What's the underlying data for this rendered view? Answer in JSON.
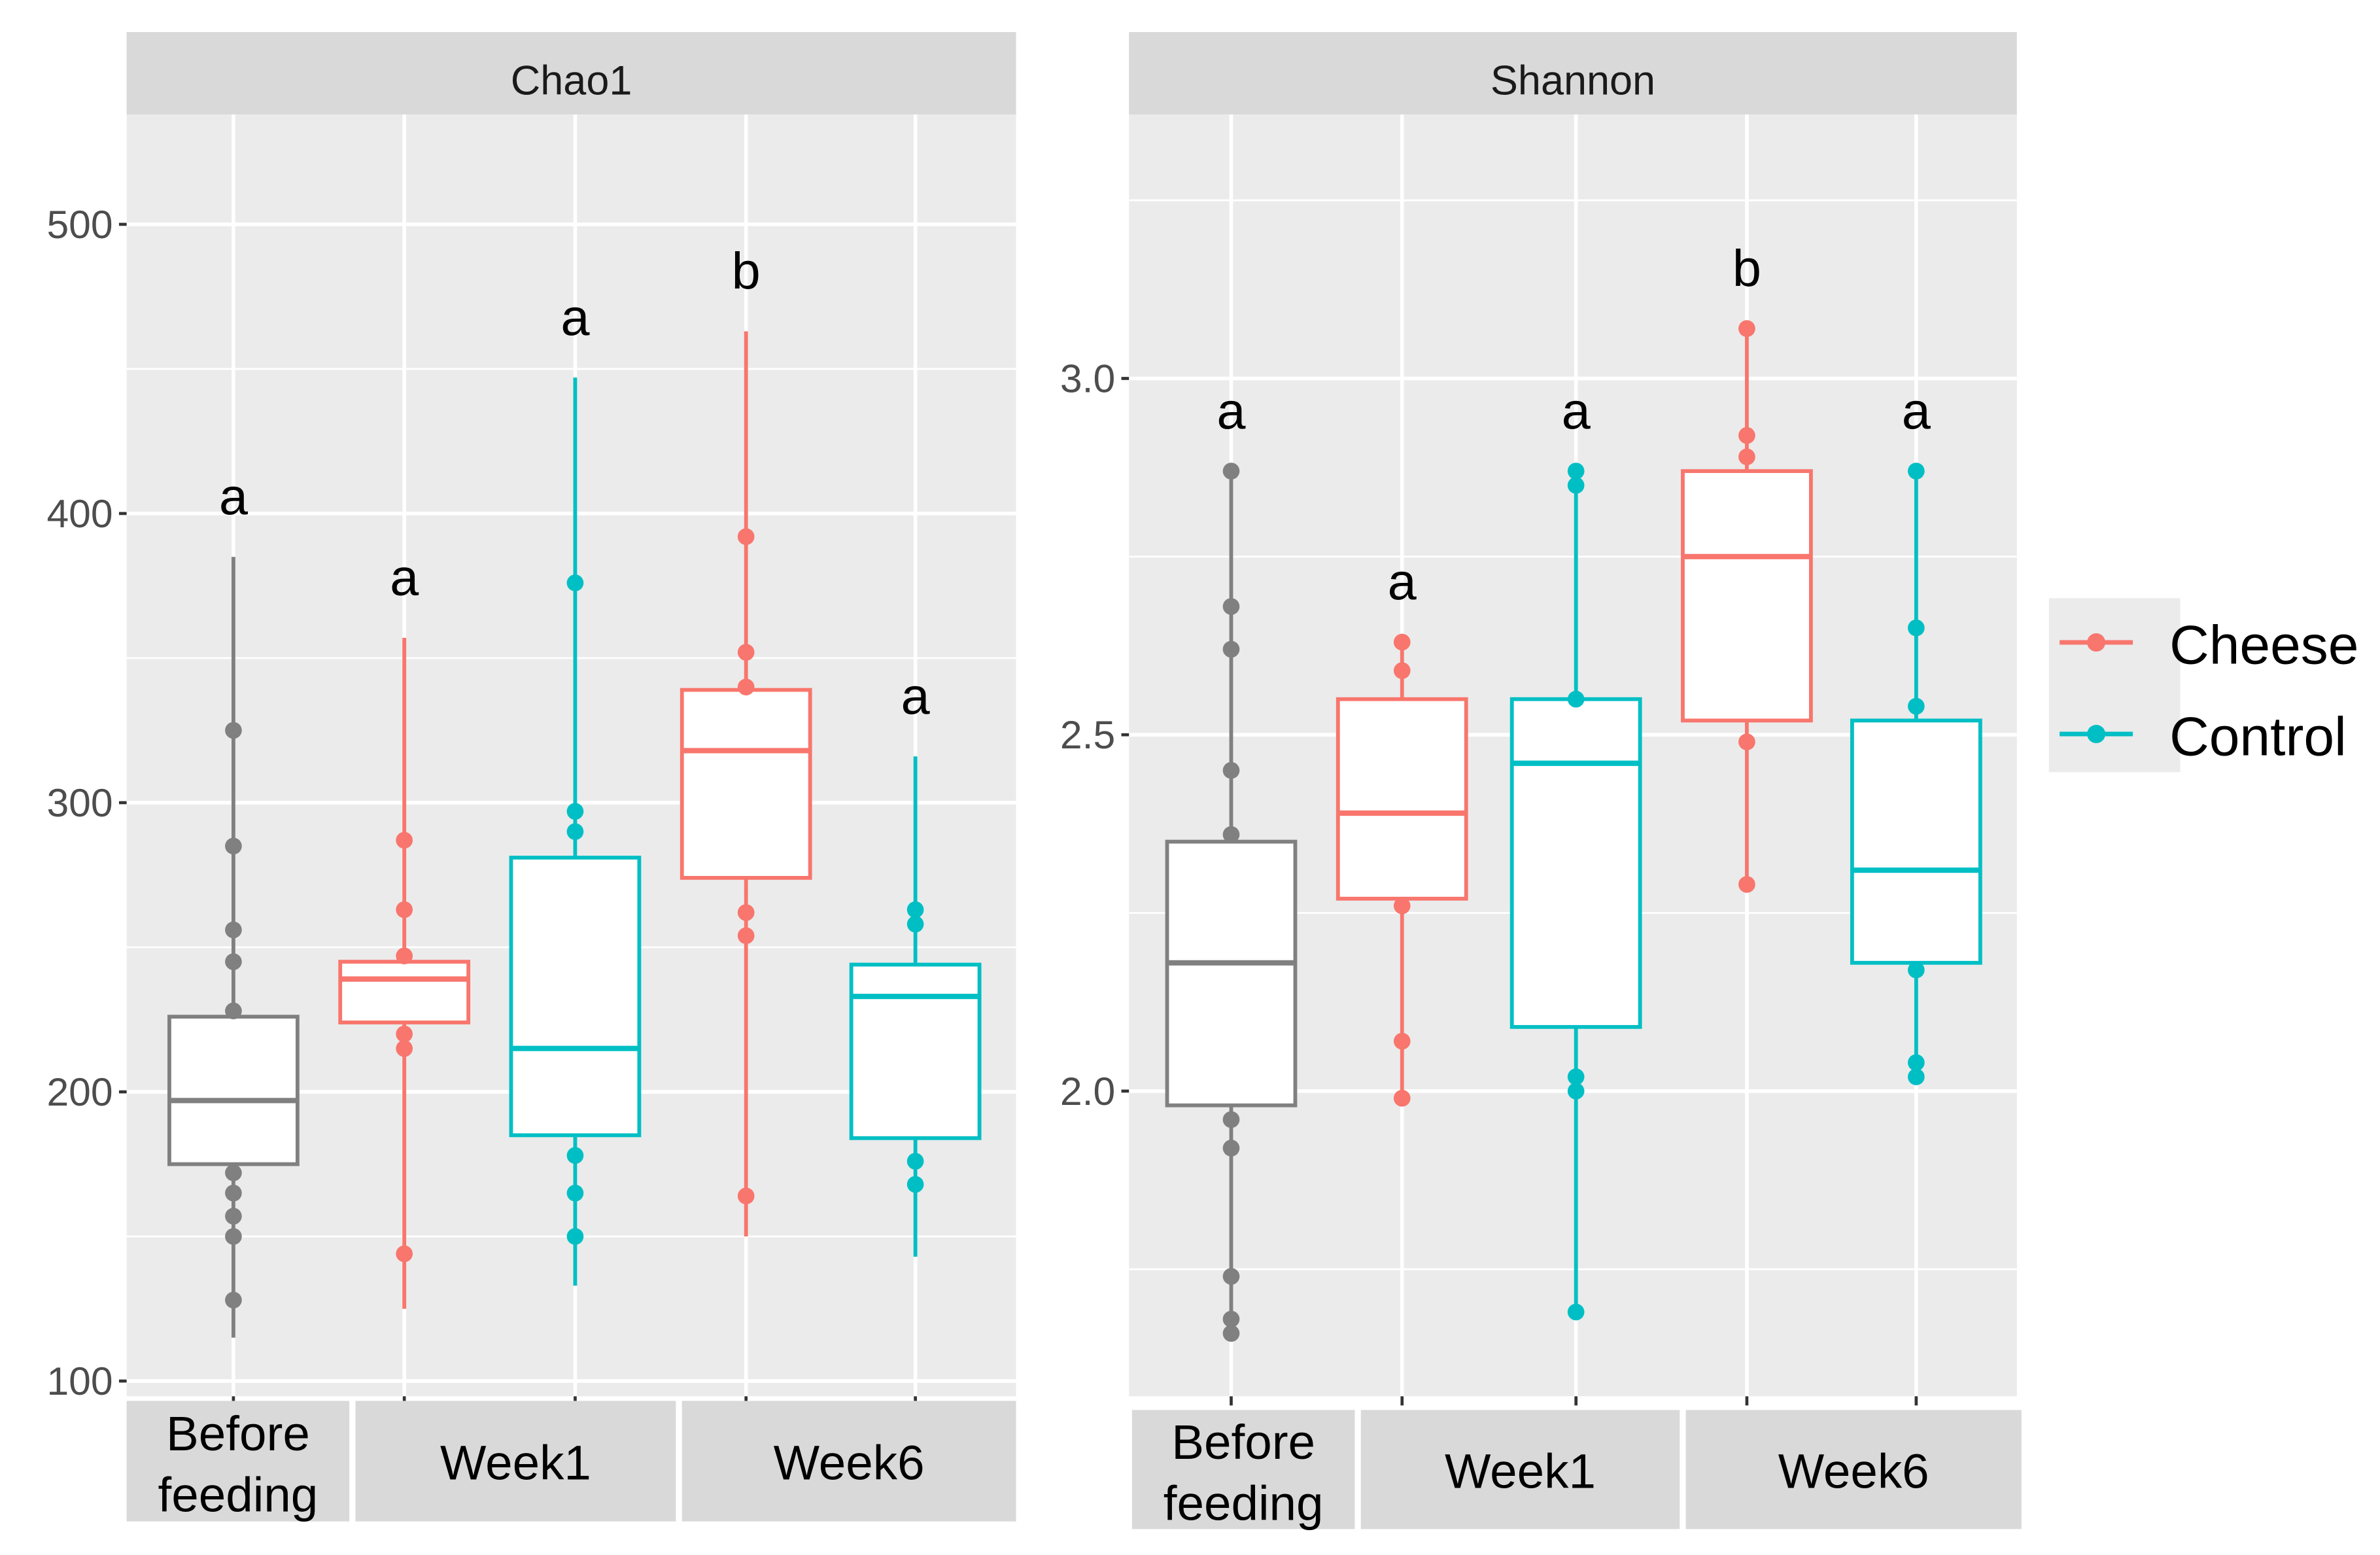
{
  "chart_data": [
    {
      "type": "box",
      "title": "Chao1",
      "ylim": [
        95,
        540
      ],
      "yticks": [
        100,
        200,
        300,
        400,
        500
      ],
      "groups": [
        "Before feeding",
        "Week1",
        "Week6"
      ],
      "boxes": [
        {
          "group": "Before feeding",
          "series": "Before",
          "color": "#808080",
          "min": 115,
          "q1": 175,
          "median": 197,
          "q3": 226,
          "max": 385,
          "points": [
            128,
            150,
            157,
            165,
            172,
            228,
            245,
            256,
            285,
            325
          ],
          "label": "a"
        },
        {
          "group": "Week1",
          "series": "Cheese",
          "color": "#F8766D",
          "min": 125,
          "q1": 224,
          "median": 239,
          "q3": 245,
          "max": 357,
          "points": [
            144,
            215,
            220,
            247,
            263,
            287
          ],
          "label": "a"
        },
        {
          "group": "Week1",
          "series": "Control",
          "color": "#00BFC4",
          "min": 133,
          "q1": 185,
          "median": 215,
          "q3": 281,
          "max": 447,
          "points": [
            150,
            165,
            178,
            290,
            297,
            376
          ],
          "label": "a"
        },
        {
          "group": "Week6",
          "series": "Cheese",
          "color": "#F8766D",
          "min": 150,
          "q1": 274,
          "median": 318,
          "q3": 339,
          "max": 463,
          "points": [
            164,
            254,
            262,
            340,
            352,
            392
          ],
          "label": "b"
        },
        {
          "group": "Week6",
          "series": "Control",
          "color": "#00BFC4",
          "min": 143,
          "q1": 184,
          "median": 233,
          "q3": 244,
          "max": 316,
          "points": [
            168,
            176,
            258,
            263
          ],
          "label": "a"
        }
      ]
    },
    {
      "type": "box",
      "title": "Shannon",
      "ylim": [
        1.58,
        3.36
      ],
      "yticks": [
        "2.0",
        "2.5",
        "3.0"
      ],
      "groups": [
        "Before feeding",
        "Week1",
        "Week6"
      ],
      "boxes": [
        {
          "group": "Before feeding",
          "series": "Before",
          "color": "#808080",
          "min": 1.66,
          "q1": 1.98,
          "median": 2.18,
          "q3": 2.35,
          "max": 2.87,
          "points": [
            1.66,
            1.68,
            1.74,
            1.92,
            1.96,
            2.36,
            2.45,
            2.62,
            2.68,
            2.87
          ],
          "label": "a"
        },
        {
          "group": "Week1",
          "series": "Cheese",
          "color": "#F8766D",
          "min": 1.99,
          "q1": 2.27,
          "median": 2.39,
          "q3": 2.55,
          "max": 2.63,
          "points": [
            1.99,
            2.07,
            2.26,
            2.59,
            2.63
          ],
          "label": "a"
        },
        {
          "group": "Week1",
          "series": "Control",
          "color": "#00BFC4",
          "min": 1.69,
          "q1": 2.09,
          "median": 2.46,
          "q3": 2.55,
          "max": 2.87,
          "points": [
            1.69,
            2.0,
            2.02,
            2.55,
            2.85,
            2.87
          ],
          "label": "a"
        },
        {
          "group": "Week6",
          "series": "Cheese",
          "color": "#F8766D",
          "min": 2.29,
          "q1": 2.52,
          "median": 2.75,
          "q3": 2.87,
          "max": 3.07,
          "points": [
            2.29,
            2.49,
            2.89,
            2.92,
            3.07
          ],
          "label": "b"
        },
        {
          "group": "Week6",
          "series": "Control",
          "color": "#00BFC4",
          "min": 2.02,
          "q1": 2.18,
          "median": 2.31,
          "q3": 2.52,
          "max": 2.87,
          "points": [
            2.02,
            2.04,
            2.17,
            2.54,
            2.65,
            2.87
          ],
          "label": "a"
        }
      ]
    }
  ],
  "legend": [
    {
      "label": "Cheese",
      "color": "#F8766D"
    },
    {
      "label": "Control",
      "color": "#00BFC4"
    }
  ]
}
